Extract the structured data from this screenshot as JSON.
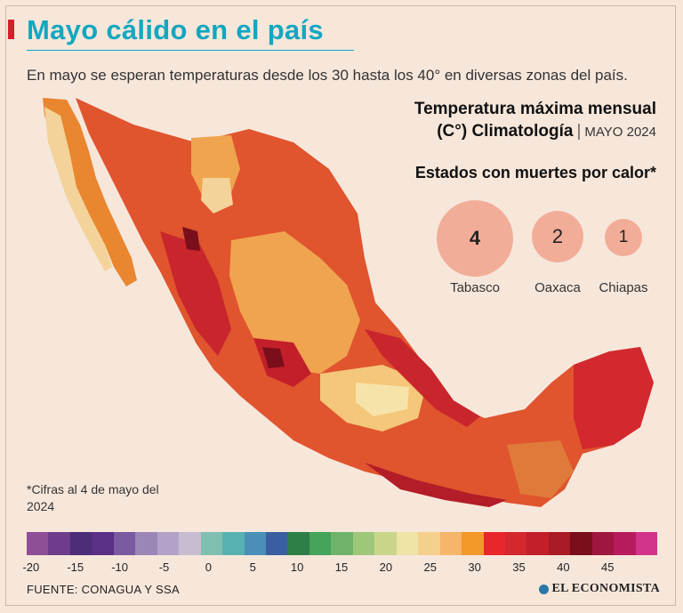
{
  "header": {
    "title": "Mayo cálido en el país",
    "subtitle": "En mayo se esperan temperaturas desde los 30 hasta los 40° en diversas zonas del país."
  },
  "legend": {
    "title_line1": "Temperatura máxima mensual",
    "title_line2": "(C°) Climatología",
    "period": "MAYO 2024",
    "scale_colors": [
      "#8f4f97",
      "#6f3c8c",
      "#4b2d78",
      "#5a2f86",
      "#7a5aa0",
      "#9b86b8",
      "#b3a2c8",
      "#c8bcd0",
      "#7fbfb0",
      "#56b2b0",
      "#4b8fb8",
      "#3b5f9e",
      "#2e7e48",
      "#45a35b",
      "#6fb36a",
      "#9fc77a",
      "#c9d68a",
      "#efe3a5",
      "#f4d08c",
      "#f7b56b",
      "#f2992a",
      "#e9262c",
      "#d3282e",
      "#c21f2a",
      "#a81a25",
      "#7a0e1a",
      "#9f1640",
      "#b61c5d",
      "#d1348a"
    ],
    "tick_labels": [
      "-20",
      "-15",
      "-10",
      "-5",
      "0",
      "5",
      "10",
      "15",
      "20",
      "25",
      "30",
      "35",
      "40",
      "45"
    ]
  },
  "deaths": {
    "title": "Estados con muertes por calor*",
    "items": [
      {
        "state": "Tabasco",
        "count": "4"
      },
      {
        "state": "Oaxaca",
        "count": "2"
      },
      {
        "state": "Chiapas",
        "count": "1"
      }
    ]
  },
  "note": "*Cifras al 4 de mayo del 2024",
  "footer": {
    "source": "FUENTE: CONAGUA Y SSA",
    "brand": "EL ECONOMISTA"
  },
  "colors": {
    "title": "#12a7c0",
    "accent": "#d1222b",
    "bubble": "#f2ad98",
    "background": "#f7e7db"
  }
}
